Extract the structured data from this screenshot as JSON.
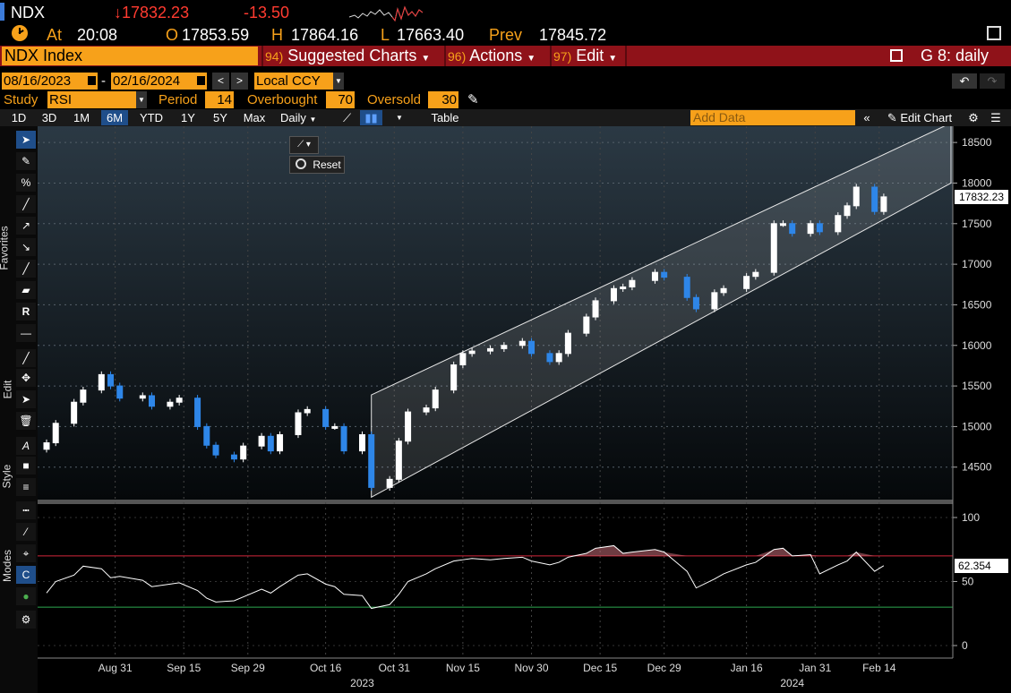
{
  "header": {
    "ticker": "NDX",
    "last": "↓17832.23",
    "change": "-13.50",
    "at_label": "At",
    "time": "20:08",
    "open_label": "O",
    "open": "17853.59",
    "high_label": "H",
    "high": "17864.16",
    "low_label": "L",
    "low": "17663.40",
    "prev_label": "Prev",
    "prev": "17845.72"
  },
  "commandbar": {
    "security": "NDX Index",
    "menus": [
      {
        "num": "94)",
        "label": "Suggested Charts"
      },
      {
        "num": "96)",
        "label": "Actions"
      },
      {
        "num": "97)",
        "label": "Edit"
      }
    ],
    "chart_id": "G 8: daily"
  },
  "range": {
    "start": "08/16/2023",
    "end": "02/16/2024",
    "currency": "Local CCY"
  },
  "study": {
    "label": "Study",
    "name": "RSI",
    "period_label": "Period",
    "period": "14",
    "overbought_label": "Overbought",
    "overbought": "70",
    "oversold_label": "Oversold",
    "oversold": "30"
  },
  "toolbar": {
    "periods": [
      "1D",
      "3D",
      "1M",
      "6M",
      "YTD",
      "1Y",
      "5Y",
      "Max"
    ],
    "active_period": "6M",
    "frequency": "Daily",
    "table_label": "Table",
    "add_data_placeholder": "Add Data",
    "edit_chart_label": "Edit Chart"
  },
  "side_labels": {
    "favorites": "Favorites",
    "edit": "Edit",
    "style": "Style",
    "modes": "Modes"
  },
  "reset_label": "Reset",
  "price_axis": {
    "ticks": [
      "18500",
      "18000",
      "17500",
      "17000",
      "16500",
      "16000",
      "15500",
      "15000",
      "14500"
    ],
    "last_label": "17832.23"
  },
  "rsi_axis": {
    "ticks": [
      "100",
      "50",
      "0"
    ],
    "last_label": "62.354"
  },
  "x_axis": {
    "ticks": [
      "Aug 31",
      "Sep 15",
      "Sep 29",
      "Oct 16",
      "Oct 31",
      "Nov 15",
      "Nov 30",
      "Dec 15",
      "Dec 29",
      "Jan 16",
      "Jan 31",
      "Feb 14"
    ],
    "years": [
      "2023",
      "2024"
    ]
  },
  "colors": {
    "up": "#ffffff",
    "down": "#2e86e8",
    "accent": "#f7a11a",
    "red_bar": "#8f1219",
    "overbought_line": "#d3263a",
    "oversold_line": "#2ea84f"
  },
  "chart_data": [
    {
      "type": "candlestick",
      "title": "",
      "ylim": [
        14100,
        18700
      ],
      "x": [
        "2023-08-16",
        "2023-08-18",
        "2023-08-22",
        "2023-08-24",
        "2023-08-28",
        "2023-08-30",
        "2023-09-01",
        "2023-09-06",
        "2023-09-08",
        "2023-09-12",
        "2023-09-14",
        "2023-09-18",
        "2023-09-20",
        "2023-09-22",
        "2023-09-26",
        "2023-09-28",
        "2023-10-02",
        "2023-10-04",
        "2023-10-06",
        "2023-10-10",
        "2023-10-12",
        "2023-10-16",
        "2023-10-18",
        "2023-10-20",
        "2023-10-24",
        "2023-10-26",
        "2023-10-30",
        "2023-11-01",
        "2023-11-03",
        "2023-11-07",
        "2023-11-09",
        "2023-11-13",
        "2023-11-15",
        "2023-11-17",
        "2023-11-21",
        "2023-11-24",
        "2023-11-28",
        "2023-11-30",
        "2023-12-04",
        "2023-12-06",
        "2023-12-08",
        "2023-12-12",
        "2023-12-14",
        "2023-12-18",
        "2023-12-20",
        "2023-12-22",
        "2023-12-27",
        "2023-12-29",
        "2024-01-03",
        "2024-01-05",
        "2024-01-09",
        "2024-01-11",
        "2024-01-16",
        "2024-01-18",
        "2024-01-22",
        "2024-01-24",
        "2024-01-26",
        "2024-01-30",
        "2024-02-01",
        "2024-02-05",
        "2024-02-07",
        "2024-02-09",
        "2024-02-13",
        "2024-02-15"
      ],
      "close": [
        14800,
        15040,
        15300,
        15450,
        15640,
        15500,
        15350,
        15380,
        15250,
        15300,
        15350,
        15000,
        14770,
        14650,
        14600,
        14760,
        14880,
        14700,
        14900,
        15170,
        15210,
        15000,
        15000,
        14700,
        14900,
        14250,
        14350,
        14820,
        15180,
        15230,
        15450,
        15760,
        15900,
        15930,
        15960,
        16000,
        16050,
        15900,
        15800,
        15900,
        16150,
        16350,
        16550,
        16700,
        16720,
        16800,
        16900,
        16840,
        16590,
        16450,
        16650,
        16700,
        16850,
        16900,
        17500,
        17500,
        17380,
        17500,
        17400,
        17600,
        17720,
        17950,
        17650,
        17830
      ],
      "rsi": [
        41,
        50,
        55,
        62,
        60,
        53,
        54,
        51,
        46,
        48,
        49,
        43,
        37,
        34,
        35,
        38,
        44,
        41,
        46,
        55,
        56,
        48,
        46,
        40,
        39,
        29,
        32,
        40,
        50,
        56,
        60,
        66,
        67,
        68,
        67,
        68,
        69,
        66,
        63,
        65,
        69,
        72,
        76,
        78,
        72,
        73,
        75,
        73,
        58,
        45,
        52,
        56,
        63,
        65,
        75,
        76,
        70,
        71,
        56,
        63,
        66,
        73,
        58,
        62.354
      ]
    }
  ]
}
